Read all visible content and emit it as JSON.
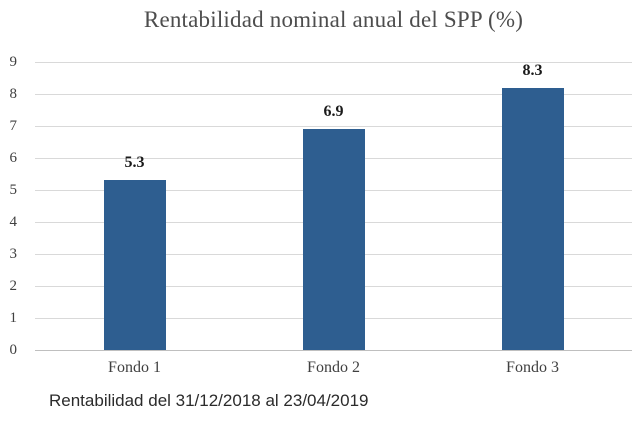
{
  "title": "Rentabilidad nominal anual del SPP (%)",
  "caption": "Rentabilidad del 31/12/2018 al 23/04/2019",
  "colors": {
    "bar_fill": "#2e5e90",
    "gridline": "#d9d9d9",
    "axis_line": "#bfbfbf",
    "title_text": "#4d4d4d",
    "tick_text": "#404040",
    "value_label_text": "#1a1a1a",
    "caption_text": "#2b2b2b",
    "background": "#ffffff"
  },
  "chart_data": {
    "type": "bar",
    "title": "Rentabilidad nominal anual del SPP (%)",
    "categories": [
      "Fondo 1",
      "Fondo 2",
      "Fondo 3"
    ],
    "values": [
      5.3,
      6.9,
      8.3
    ],
    "value_labels": [
      "5.3",
      "6.9",
      "8.3"
    ],
    "xlabel": "",
    "ylabel": "",
    "ylim": [
      0,
      9
    ],
    "y_ticks": [
      "9",
      "8",
      "7",
      "6",
      "5",
      "4",
      "3",
      "2",
      "1",
      "0"
    ],
    "grid": "horizontal-only",
    "legend": "none",
    "annotation": "Rentabilidad del 31/12/2018 al 23/04/2019"
  }
}
